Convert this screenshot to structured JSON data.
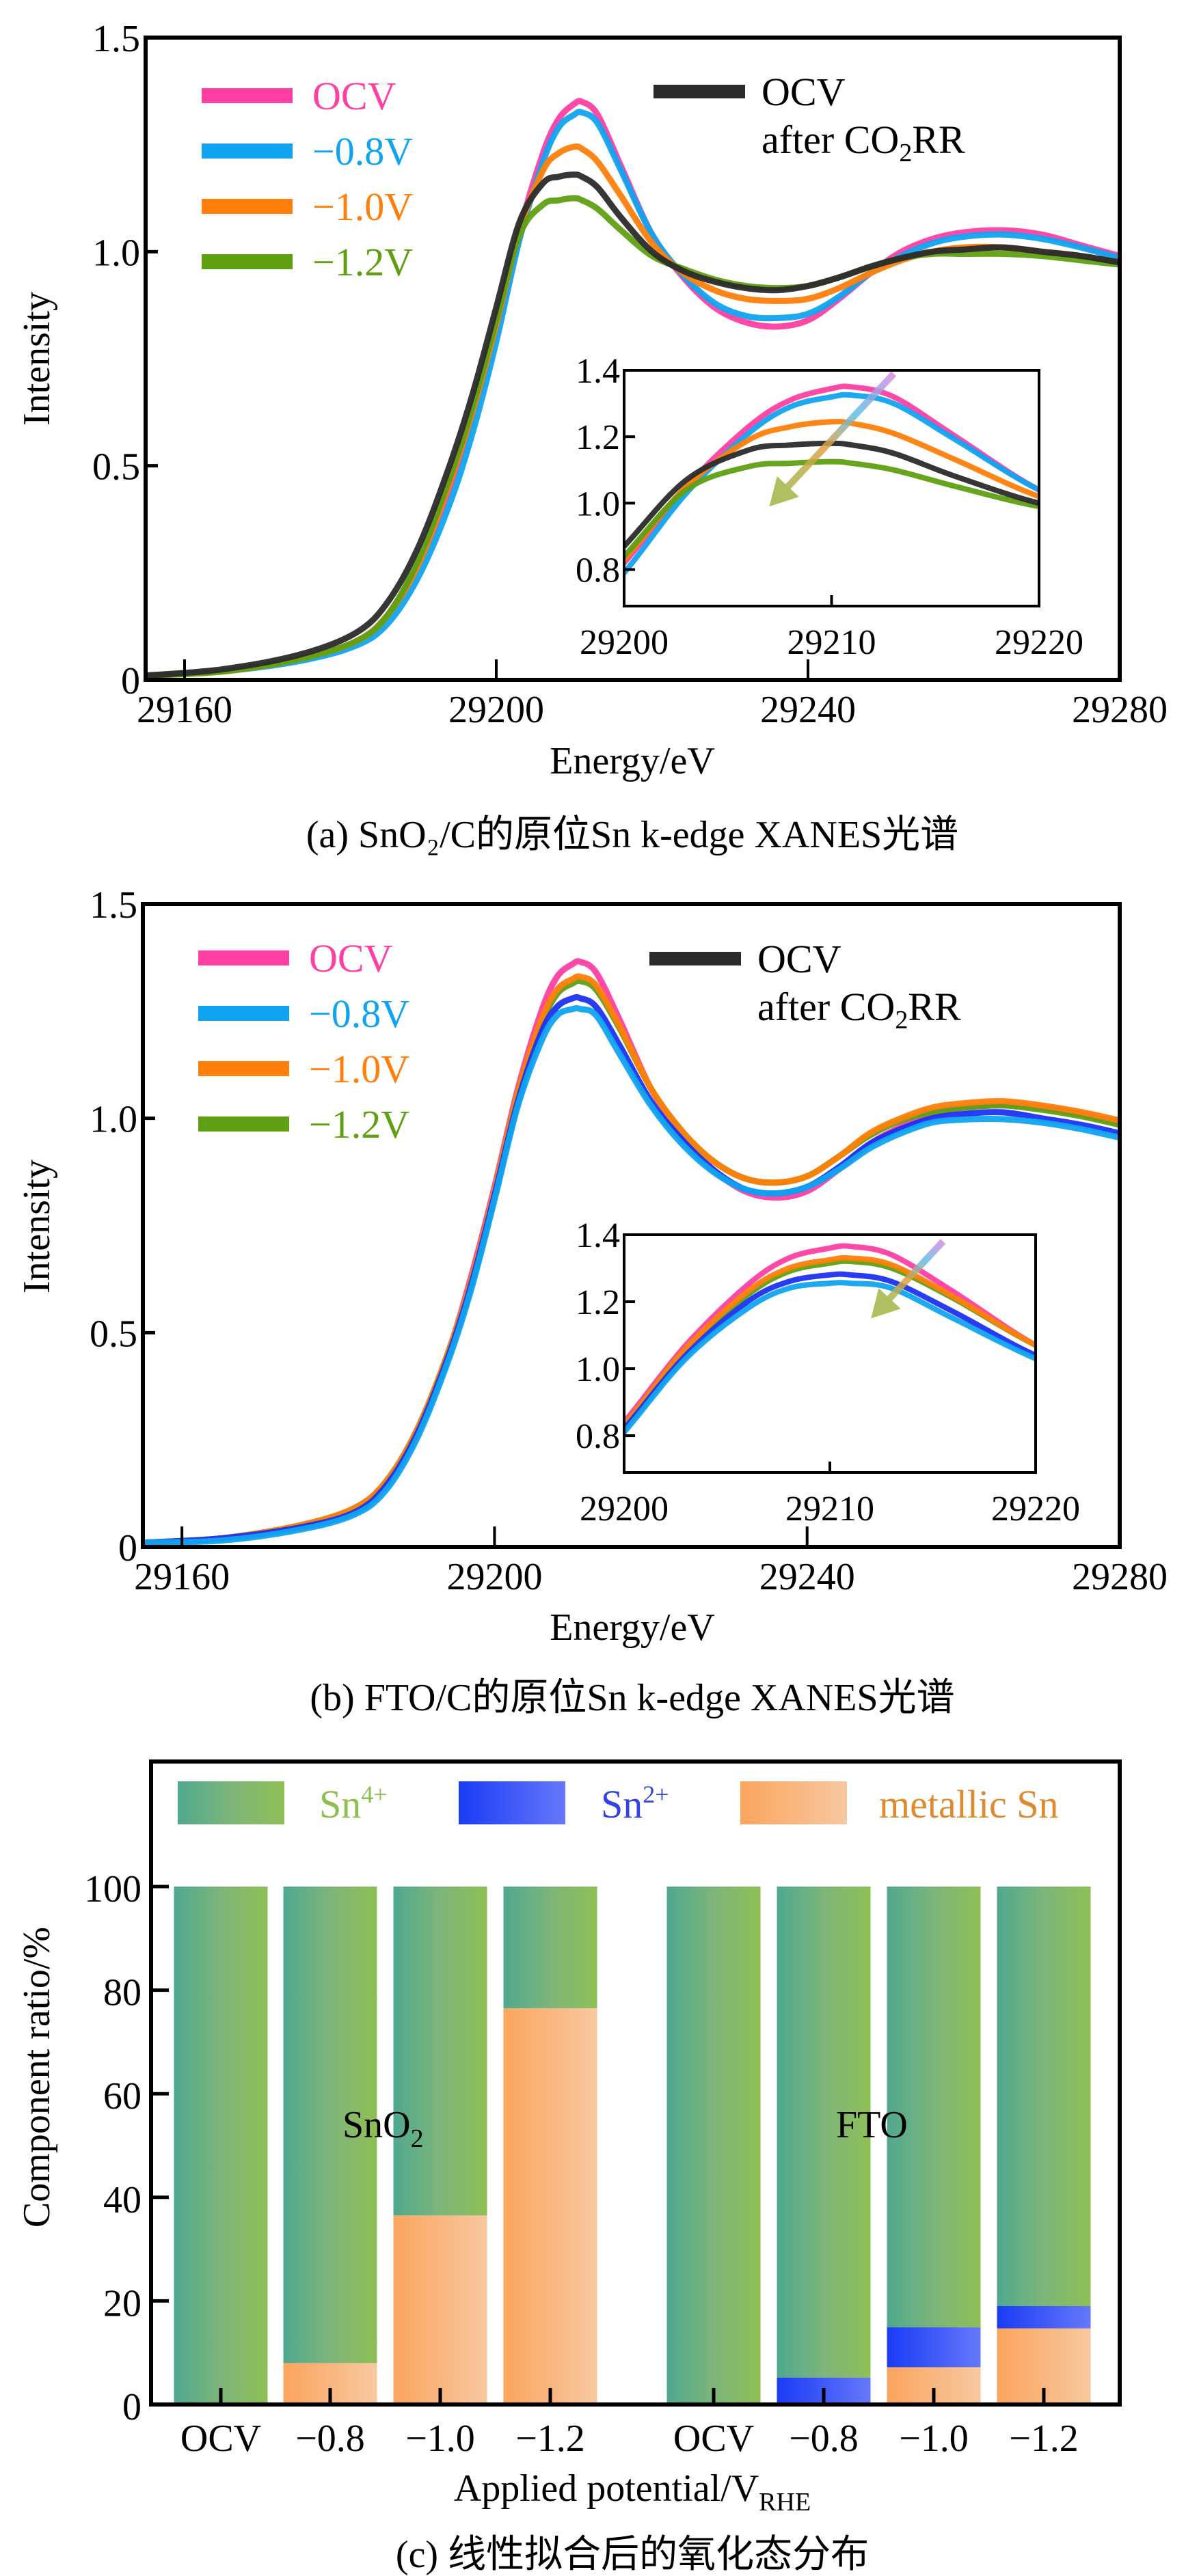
{
  "figure": {
    "captions": {
      "a": "(a) SnO₂/C的原位Sn k-edge XANES光谱",
      "b": "(b) FTO/C的原位Sn k-edge XANES光谱",
      "c": "(c) 线性拟合后的氧化态分布"
    }
  },
  "colors": {
    "ocv": "#ff3fa4",
    "v08": "#10a4f0",
    "v10": "#ff7f0a",
    "v12": "#5fa012",
    "after": "#2b2b2b",
    "after_b": "#1b32f2",
    "sn4_text": "#8cbf50",
    "sn2_text": "#3344e0",
    "metal_text": "#e08a30",
    "arrow_start": "#d98ae0",
    "arrow_mid": "#e0a040",
    "arrow_end": "#a8b850"
  },
  "chart_data": [
    {
      "id": "a",
      "type": "line",
      "title": "(a) SnO2/C的原位Sn k-edge XANES光谱",
      "xlabel": "Energy/eV",
      "ylabel": "Intensity",
      "xlim": [
        29155,
        29280
      ],
      "ylim": [
        0,
        1.5
      ],
      "xticks": [
        29160,
        29200,
        29240,
        29280
      ],
      "yticks": [
        0,
        0.5,
        1.0,
        1.5
      ],
      "ytick_labels": [
        "0",
        "0.5",
        "1.0",
        "1.5"
      ],
      "legend": {
        "left": [
          {
            "label": "OCV",
            "series": "ocv"
          },
          {
            "label": "−0.8V",
            "series": "v08"
          },
          {
            "label": "−1.0V",
            "series": "v10"
          },
          {
            "label": "−1.2V",
            "series": "v12"
          }
        ],
        "right": {
          "line1": "OCV",
          "line2_prefix": "after CO",
          "line2_sub": "2",
          "line2_suffix": "RR",
          "series": "after"
        },
        "placement": "top-left"
      },
      "x": [
        29155,
        29165,
        29175,
        29182,
        29186,
        29190,
        29194,
        29197,
        29200,
        29203,
        29206,
        29208,
        29210,
        29211,
        29213,
        29216,
        29220,
        29224,
        29228,
        29232,
        29236,
        29240,
        29244,
        29248,
        29252,
        29256,
        29260,
        29265,
        29270,
        29275,
        29280
      ],
      "series": [
        {
          "key": "ocv",
          "name": "OCV",
          "values": [
            0.01,
            0.02,
            0.05,
            0.09,
            0.15,
            0.27,
            0.45,
            0.62,
            0.82,
            1.05,
            1.23,
            1.31,
            1.345,
            1.35,
            1.32,
            1.2,
            1.04,
            0.94,
            0.87,
            0.835,
            0.825,
            0.84,
            0.89,
            0.95,
            1.0,
            1.03,
            1.045,
            1.05,
            1.04,
            1.015,
            0.99
          ]
        },
        {
          "key": "v08",
          "name": "−0.8V",
          "values": [
            0.01,
            0.02,
            0.045,
            0.08,
            0.13,
            0.24,
            0.41,
            0.58,
            0.79,
            1.03,
            1.21,
            1.29,
            1.32,
            1.325,
            1.3,
            1.19,
            1.04,
            0.945,
            0.88,
            0.85,
            0.845,
            0.855,
            0.895,
            0.95,
            0.99,
            1.02,
            1.035,
            1.04,
            1.03,
            1.01,
            0.985
          ]
        },
        {
          "key": "v10",
          "name": "−1.0V",
          "values": [
            0.01,
            0.02,
            0.05,
            0.09,
            0.15,
            0.27,
            0.46,
            0.63,
            0.83,
            1.05,
            1.19,
            1.23,
            1.245,
            1.24,
            1.21,
            1.13,
            1.02,
            0.95,
            0.91,
            0.89,
            0.885,
            0.89,
            0.915,
            0.95,
            0.98,
            1.0,
            1.01,
            1.01,
            1.0,
            0.99,
            0.975
          ]
        },
        {
          "key": "v12",
          "name": "−1.2V",
          "values": [
            0.01,
            0.02,
            0.05,
            0.09,
            0.15,
            0.28,
            0.47,
            0.64,
            0.84,
            1.04,
            1.11,
            1.12,
            1.125,
            1.12,
            1.1,
            1.05,
            0.99,
            0.96,
            0.935,
            0.92,
            0.915,
            0.92,
            0.94,
            0.965,
            0.985,
            0.995,
            0.995,
            0.995,
            0.99,
            0.98,
            0.97
          ]
        },
        {
          "key": "after",
          "name": "OCV after CO2RR",
          "values": [
            0.01,
            0.025,
            0.06,
            0.11,
            0.18,
            0.31,
            0.5,
            0.67,
            0.87,
            1.07,
            1.16,
            1.175,
            1.18,
            1.175,
            1.15,
            1.08,
            1.0,
            0.955,
            0.93,
            0.915,
            0.91,
            0.92,
            0.94,
            0.965,
            0.985,
            1.0,
            1.005,
            1.01,
            1.0,
            0.99,
            0.975
          ]
        }
      ],
      "inset": {
        "xlim": [
          29200,
          29220
        ],
        "ylim": [
          0.69,
          1.4
        ],
        "xticks": [
          29200,
          29210,
          29220
        ],
        "yticks": [
          0.8,
          1.0,
          1.2,
          1.4
        ],
        "ytick_labels": [
          "0.8",
          "1.0",
          "1.2",
          "1.4"
        ],
        "arrow": {
          "from": [
            29213.0,
            1.39
          ],
          "to": [
            29207.0,
            0.99
          ],
          "meaning": "decreasing white-line intensity"
        }
      }
    },
    {
      "id": "b",
      "type": "line",
      "title": "(b) FTO/C的原位Sn k-edge XANES光谱",
      "xlabel": "Energy/eV",
      "ylabel": "Intensity",
      "xlim": [
        29155,
        29280
      ],
      "ylim": [
        0,
        1.5
      ],
      "xticks": [
        29160,
        29200,
        29240,
        29280
      ],
      "yticks": [
        0,
        0.5,
        1.0,
        1.5
      ],
      "ytick_labels": [
        "0",
        "0.5",
        "1.0",
        "1.5"
      ],
      "legend": {
        "left": [
          {
            "label": "OCV",
            "series": "ocv"
          },
          {
            "label": "−0.8V",
            "series": "v08"
          },
          {
            "label": "−1.0V",
            "series": "v10"
          },
          {
            "label": "−1.2V",
            "series": "v12"
          }
        ],
        "right": {
          "line1": "OCV",
          "line2_prefix": "after CO",
          "line2_sub": "2",
          "line2_suffix": "RR",
          "series": "after"
        },
        "placement": "top-left"
      },
      "x": [
        29155,
        29165,
        29175,
        29182,
        29186,
        29190,
        29194,
        29197,
        29200,
        29203,
        29206,
        29208,
        29210,
        29211,
        29213,
        29216,
        29220,
        29224,
        29228,
        29232,
        29236,
        29240,
        29244,
        29248,
        29252,
        29256,
        29260,
        29265,
        29270,
        29275,
        29280
      ],
      "series": [
        {
          "key": "ocv",
          "name": "OCV",
          "values": [
            0.01,
            0.02,
            0.05,
            0.09,
            0.15,
            0.27,
            0.45,
            0.63,
            0.84,
            1.07,
            1.25,
            1.33,
            1.36,
            1.365,
            1.34,
            1.23,
            1.07,
            0.96,
            0.88,
            0.83,
            0.815,
            0.83,
            0.88,
            0.94,
            0.98,
            1.01,
            1.025,
            1.03,
            1.025,
            1.01,
            0.99
          ]
        },
        {
          "key": "v12",
          "name": "−1.2V",
          "values": [
            0.01,
            0.02,
            0.05,
            0.09,
            0.15,
            0.27,
            0.45,
            0.62,
            0.83,
            1.06,
            1.22,
            1.29,
            1.315,
            1.32,
            1.3,
            1.21,
            1.07,
            0.97,
            0.9,
            0.86,
            0.85,
            0.865,
            0.91,
            0.96,
            0.995,
            1.015,
            1.025,
            1.03,
            1.02,
            1.005,
            0.985
          ]
        },
        {
          "key": "v10",
          "name": "−1.0V",
          "values": [
            0.01,
            0.02,
            0.05,
            0.09,
            0.15,
            0.27,
            0.45,
            0.62,
            0.83,
            1.06,
            1.23,
            1.3,
            1.325,
            1.33,
            1.31,
            1.215,
            1.07,
            0.97,
            0.9,
            0.86,
            0.85,
            0.865,
            0.91,
            0.965,
            1.0,
            1.025,
            1.035,
            1.04,
            1.03,
            1.015,
            0.995
          ]
        },
        {
          "key": "after",
          "name": "OCV after CO2RR",
          "values": [
            0.01,
            0.02,
            0.045,
            0.08,
            0.14,
            0.26,
            0.44,
            0.61,
            0.82,
            1.04,
            1.2,
            1.26,
            1.28,
            1.28,
            1.26,
            1.17,
            1.04,
            0.95,
            0.88,
            0.835,
            0.825,
            0.84,
            0.885,
            0.94,
            0.975,
            1.0,
            1.01,
            1.014,
            1.0,
            0.985,
            0.965
          ]
        },
        {
          "key": "v08",
          "name": "−0.8V",
          "values": [
            0.01,
            0.015,
            0.04,
            0.075,
            0.13,
            0.25,
            0.43,
            0.6,
            0.81,
            1.03,
            1.18,
            1.24,
            1.255,
            1.255,
            1.24,
            1.15,
            1.03,
            0.94,
            0.875,
            0.835,
            0.825,
            0.84,
            0.88,
            0.93,
            0.965,
            0.99,
            0.997,
            0.998,
            0.99,
            0.975,
            0.955
          ]
        }
      ],
      "inset": {
        "xlim": [
          29200,
          29220
        ],
        "ylim": [
          0.69,
          1.4
        ],
        "xticks": [
          29200,
          29210,
          29220
        ],
        "yticks": [
          0.8,
          1.0,
          1.2,
          1.4
        ],
        "ytick_labels": [
          "0.8",
          "1.0",
          "1.2",
          "1.4"
        ],
        "arrow": {
          "from": [
            29215.5,
            1.38
          ],
          "to": [
            29212.0,
            1.15
          ],
          "meaning": "decreasing white-line intensity"
        }
      }
    },
    {
      "id": "c",
      "type": "bar",
      "stacked": true,
      "title": "(c) 线性拟合后的氧化态分布",
      "xlabel_prefix": "Applied potential/V",
      "xlabel_sub": "RHE",
      "ylabel": "Component ratio/%",
      "ylim": [
        0,
        100
      ],
      "yticks": [
        0,
        20,
        40,
        60,
        80,
        100
      ],
      "groups": [
        {
          "label": "SnO",
          "label_sub": "2",
          "categories": [
            "OCV",
            "−0.8",
            "−1.0",
            "−1.2"
          ]
        },
        {
          "label": "FTO",
          "label_sub": "",
          "categories": [
            "OCV",
            "−0.8",
            "−1.0",
            "−1.2"
          ]
        }
      ],
      "legend": [
        {
          "key": "sn4",
          "label": "Sn",
          "sup": "4+"
        },
        {
          "key": "sn2",
          "label": "Sn",
          "sup": "2+"
        },
        {
          "key": "metal",
          "label": "metallic Sn",
          "sup": ""
        }
      ],
      "legend_placement": "top",
      "series": [
        {
          "key": "metal",
          "name": "metallic Sn",
          "values": [
            0,
            8,
            36.5,
            76.5,
            0,
            0,
            7.2,
            14.7
          ]
        },
        {
          "key": "sn2",
          "name": "Sn2+",
          "values": [
            0,
            0,
            0,
            0,
            0,
            5.2,
            7.7,
            4.3
          ]
        },
        {
          "key": "sn4",
          "name": "Sn4+",
          "values": [
            100,
            92,
            63.5,
            23.5,
            100,
            94.8,
            85.1,
            81.0
          ]
        }
      ]
    }
  ]
}
